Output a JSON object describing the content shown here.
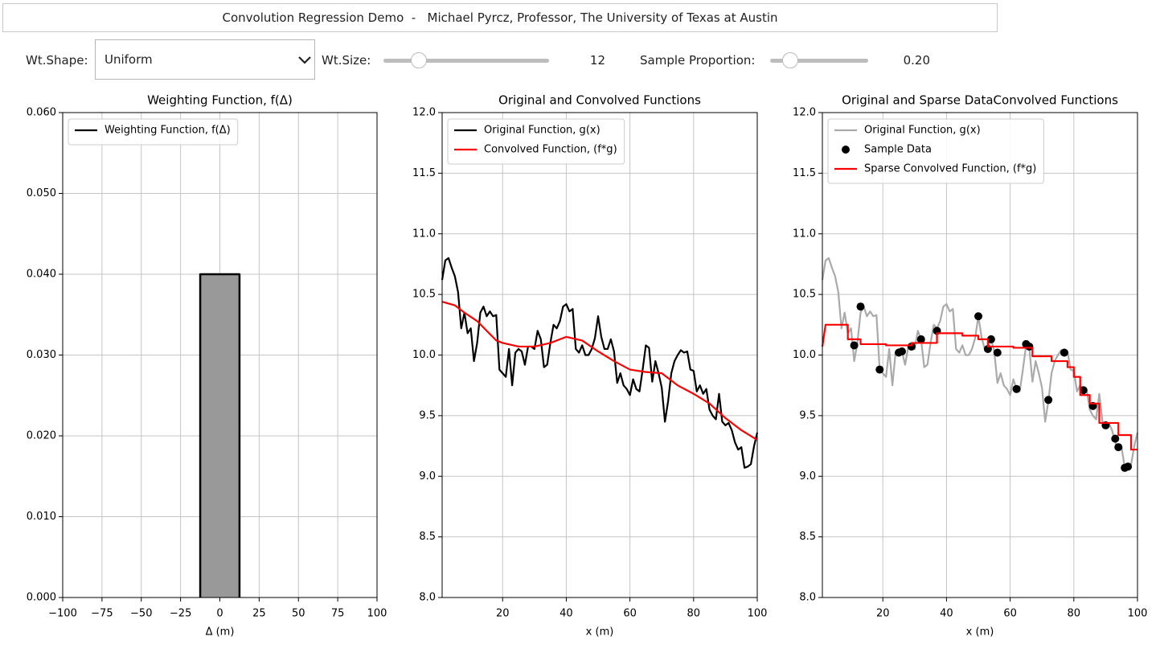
{
  "header": {
    "title": "Convolution Regression Demo  -   Michael Pyrcz, Professor, The University of Texas at Austin"
  },
  "controls": {
    "wt_shape_label": "Wt.Shape:",
    "wt_shape_value": "Uniform",
    "wt_size_label": "Wt.Size:",
    "wt_size_value": "12",
    "sample_label": "Sample Proportion:",
    "sample_value": "0.20"
  },
  "chart_data": [
    {
      "type": "line",
      "title": "Weighting Function, f(Δ)",
      "xlabel": "Δ (m)",
      "xlim": [
        -100,
        100
      ],
      "ylim": [
        0,
        0.06
      ],
      "xticks": [
        {
          "value": -100,
          "label": "−100"
        },
        {
          "value": -75,
          "label": "−75"
        },
        {
          "value": -50,
          "label": "−50"
        },
        {
          "value": -25,
          "label": "−25"
        },
        0,
        25,
        50,
        75,
        100
      ],
      "yticks": [
        {
          "value": 0,
          "label": "0.000"
        },
        {
          "value": 0.01,
          "label": "0.010"
        },
        {
          "value": 0.02,
          "label": "0.020"
        },
        {
          "value": 0.03,
          "label": "0.030"
        },
        {
          "value": 0.04,
          "label": "0.040"
        },
        {
          "value": 0.05,
          "label": "0.050"
        },
        {
          "value": 0.06,
          "label": "0.060"
        }
      ],
      "grid": true,
      "legend": "upper left",
      "series": [
        {
          "name": "Weighting Function, f(Δ)",
          "color": "#000000",
          "fill": "#999999",
          "x": [
            -12.5,
            -12.5,
            12.5,
            12.5
          ],
          "values": [
            0,
            0.04,
            0.04,
            0
          ]
        }
      ]
    },
    {
      "type": "line",
      "title": "Original and Convolved Functions",
      "xlabel": "x (m)",
      "xlim": [
        1,
        100
      ],
      "ylim": [
        8,
        12
      ],
      "xticks": [
        20,
        40,
        60,
        80,
        100
      ],
      "yticks": [
        {
          "value": 8,
          "label": "8.0"
        },
        8.5,
        {
          "value": 9,
          "label": "9.0"
        },
        9.5,
        {
          "value": 10,
          "label": "10.0"
        },
        10.5,
        {
          "value": 11,
          "label": "11.0"
        },
        11.5,
        {
          "value": 12,
          "label": "12.0"
        }
      ],
      "grid": true,
      "legend": "upper left",
      "series": [
        {
          "name": "Original Function, g(x)",
          "color": "#000000",
          "x": [
            1,
            2,
            3,
            4,
            5,
            6,
            7,
            8,
            9,
            10,
            11,
            12,
            13,
            14,
            15,
            16,
            17,
            18,
            19,
            20,
            21,
            22,
            23,
            24,
            25,
            26,
            27,
            28,
            29,
            30,
            31,
            32,
            33,
            34,
            35,
            36,
            37,
            38,
            39,
            40,
            41,
            42,
            43,
            44,
            45,
            46,
            47,
            48,
            49,
            50,
            51,
            52,
            53,
            54,
            55,
            56,
            57,
            58,
            59,
            60,
            61,
            62,
            63,
            64,
            65,
            66,
            67,
            68,
            69,
            70,
            71,
            72,
            73,
            74,
            75,
            76,
            77,
            78,
            79,
            80,
            81,
            82,
            83,
            84,
            85,
            86,
            87,
            88,
            89,
            90,
            91,
            92,
            93,
            94,
            95,
            96,
            97,
            98,
            99,
            100
          ],
          "values": [
            10.62,
            10.78,
            10.8,
            10.72,
            10.65,
            10.52,
            10.22,
            10.35,
            10.18,
            10.22,
            9.95,
            10.1,
            10.35,
            10.4,
            10.32,
            10.36,
            10.32,
            10.33,
            9.88,
            9.85,
            9.82,
            10.05,
            9.75,
            10.02,
            10.05,
            10.03,
            9.92,
            10.07,
            10.07,
            10.05,
            10.2,
            10.13,
            9.9,
            9.92,
            10.1,
            10.25,
            10.22,
            10.28,
            10.4,
            10.42,
            10.36,
            10.38,
            10.05,
            10.02,
            10.08,
            10.0,
            10.0,
            10.05,
            10.14,
            10.32,
            10.15,
            10.05,
            10.05,
            10.13,
            10.03,
            9.77,
            9.85,
            9.75,
            9.72,
            9.67,
            9.8,
            9.72,
            9.7,
            9.88,
            10.08,
            10.06,
            9.78,
            9.95,
            9.85,
            9.73,
            9.45,
            9.62,
            9.85,
            9.95,
            10.0,
            10.04,
            10.02,
            10.03,
            9.88,
            9.87,
            9.7,
            9.75,
            9.68,
            9.72,
            9.55,
            9.5,
            9.47,
            9.68,
            9.45,
            9.42,
            9.44,
            9.38,
            9.28,
            9.22,
            9.24,
            9.07,
            9.08,
            9.1,
            9.25,
            9.36
          ]
        },
        {
          "name": "Convolved Function, (f*g)",
          "color": "#ff0000",
          "x": [
            1,
            5,
            8,
            12,
            15,
            18,
            20,
            25,
            30,
            35,
            40,
            45,
            50,
            55,
            60,
            65,
            70,
            75,
            80,
            85,
            90,
            95,
            100
          ],
          "values": [
            10.44,
            10.41,
            10.35,
            10.28,
            10.2,
            10.12,
            10.1,
            10.07,
            10.07,
            10.1,
            10.15,
            10.12,
            10.03,
            9.95,
            9.88,
            9.86,
            9.85,
            9.75,
            9.68,
            9.6,
            9.48,
            9.38,
            9.3
          ]
        }
      ]
    },
    {
      "type": "line",
      "title": "Original and Sparse DataConvolved Functions",
      "xlabel": "x (m)",
      "xlim": [
        1,
        100
      ],
      "ylim": [
        8,
        12
      ],
      "xticks": [
        20,
        40,
        60,
        80,
        100
      ],
      "yticks": [
        {
          "value": 8,
          "label": "8.0"
        },
        8.5,
        {
          "value": 9,
          "label": "9.0"
        },
        9.5,
        {
          "value": 10,
          "label": "10.0"
        },
        10.5,
        {
          "value": 11,
          "label": "11.0"
        },
        11.5,
        {
          "value": 12,
          "label": "12.0"
        }
      ],
      "grid": true,
      "legend": "upper left",
      "series": [
        {
          "name": "Original Function, g(x)",
          "color": "#aaaaaa",
          "x": [
            1,
            2,
            3,
            4,
            5,
            6,
            7,
            8,
            9,
            10,
            11,
            12,
            13,
            14,
            15,
            16,
            17,
            18,
            19,
            20,
            21,
            22,
            23,
            24,
            25,
            26,
            27,
            28,
            29,
            30,
            31,
            32,
            33,
            34,
            35,
            36,
            37,
            38,
            39,
            40,
            41,
            42,
            43,
            44,
            45,
            46,
            47,
            48,
            49,
            50,
            51,
            52,
            53,
            54,
            55,
            56,
            57,
            58,
            59,
            60,
            61,
            62,
            63,
            64,
            65,
            66,
            67,
            68,
            69,
            70,
            71,
            72,
            73,
            74,
            75,
            76,
            77,
            78,
            79,
            80,
            81,
            82,
            83,
            84,
            85,
            86,
            87,
            88,
            89,
            90,
            91,
            92,
            93,
            94,
            95,
            96,
            97,
            98,
            99,
            100
          ],
          "values": [
            10.62,
            10.78,
            10.8,
            10.72,
            10.65,
            10.52,
            10.22,
            10.35,
            10.18,
            10.22,
            9.95,
            10.1,
            10.35,
            10.4,
            10.32,
            10.36,
            10.32,
            10.33,
            9.88,
            9.85,
            9.82,
            10.05,
            9.75,
            10.02,
            10.05,
            10.03,
            9.92,
            10.07,
            10.07,
            10.05,
            10.2,
            10.13,
            9.9,
            9.92,
            10.1,
            10.25,
            10.22,
            10.28,
            10.4,
            10.42,
            10.36,
            10.38,
            10.05,
            10.02,
            10.08,
            10.0,
            10.0,
            10.05,
            10.14,
            10.32,
            10.15,
            10.05,
            10.05,
            10.13,
            10.03,
            9.77,
            9.85,
            9.75,
            9.72,
            9.67,
            9.8,
            9.72,
            9.7,
            9.88,
            10.08,
            10.06,
            9.78,
            9.95,
            9.85,
            9.73,
            9.45,
            9.62,
            9.85,
            9.95,
            10.0,
            10.04,
            10.02,
            10.03,
            9.88,
            9.87,
            9.7,
            9.75,
            9.68,
            9.72,
            9.55,
            9.5,
            9.47,
            9.68,
            9.45,
            9.42,
            9.44,
            9.38,
            9.28,
            9.22,
            9.24,
            9.07,
            9.08,
            9.1,
            9.25,
            9.36
          ]
        },
        {
          "name": "Sample Data",
          "color": "#000000",
          "type": "scatter",
          "x": [
            11,
            13,
            19,
            25,
            26,
            29,
            32,
            37,
            50,
            53,
            54,
            56,
            62,
            65,
            66,
            72,
            77,
            83,
            86,
            90,
            93,
            94,
            96,
            97
          ],
          "values": [
            10.08,
            10.4,
            9.88,
            10.02,
            10.03,
            10.07,
            10.13,
            10.2,
            10.32,
            10.05,
            10.13,
            10.02,
            9.72,
            10.09,
            10.07,
            9.63,
            10.02,
            9.71,
            9.58,
            9.42,
            9.31,
            9.24,
            9.07,
            9.08
          ]
        },
        {
          "name": "Sparse Convolved Function, (f*g)",
          "color": "#ff0000",
          "x": [
            1,
            2,
            9,
            9,
            13,
            13,
            21,
            21,
            29,
            29,
            37,
            37,
            45,
            45,
            50,
            50,
            53,
            53,
            61,
            61,
            67,
            67,
            73,
            73,
            78,
            78,
            80,
            80,
            82,
            82,
            85,
            85,
            88,
            88,
            94,
            94,
            98,
            98,
            100
          ],
          "values": [
            10.07,
            10.25,
            10.25,
            10.13,
            10.13,
            10.09,
            10.09,
            10.08,
            10.08,
            10.1,
            10.1,
            10.18,
            10.18,
            10.16,
            10.16,
            10.13,
            10.13,
            10.07,
            10.07,
            10.06,
            10.06,
            9.99,
            9.99,
            9.95,
            9.95,
            9.9,
            9.9,
            9.82,
            9.82,
            9.67,
            9.67,
            9.6,
            9.6,
            9.44,
            9.44,
            9.34,
            9.34,
            9.22,
            9.22
          ]
        }
      ]
    }
  ]
}
